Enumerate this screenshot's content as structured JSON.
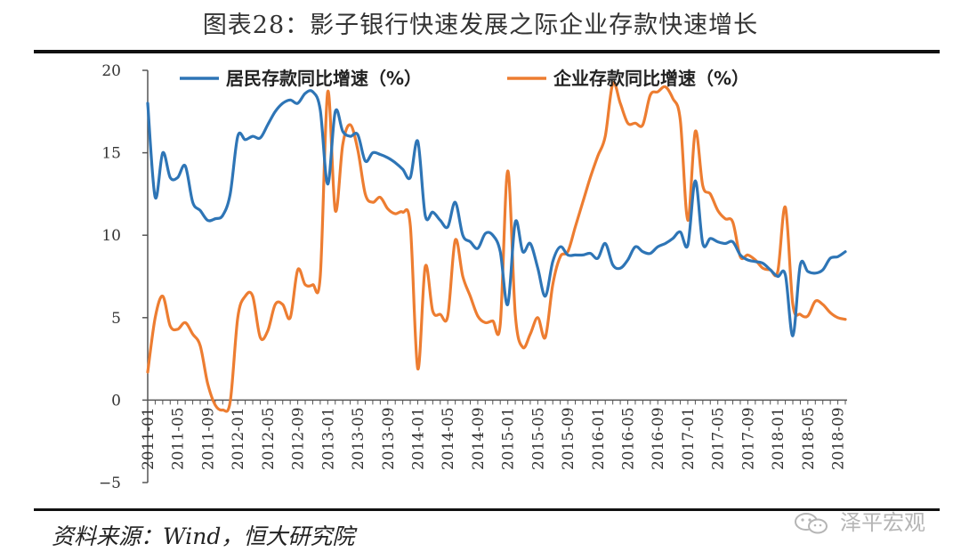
{
  "title": "图表28：影子银行快速发展之际企业存款快速增长",
  "source": "资料来源：Wind，恒大研究院",
  "watermark": "泽平宏观",
  "colors": {
    "series_1": "#2E75B6",
    "series_2": "#ED7D31",
    "axis": "#555555"
  },
  "chart_data": {
    "type": "line",
    "title": "图表28：影子银行快速发展之际企业存款快速增长",
    "xlabel": "",
    "ylabel": "",
    "ylim": [
      -5,
      20
    ],
    "yticks": [
      -5,
      0,
      5,
      10,
      15,
      20
    ],
    "xlim": [
      0,
      93
    ],
    "xtick_labels": [
      "2011-01",
      "2011-05",
      "2011-09",
      "2012-01",
      "2012-05",
      "2012-09",
      "2013-01",
      "2013-05",
      "2013-09",
      "2014-01",
      "2014-05",
      "2014-09",
      "2015-01",
      "2015-05",
      "2015-09",
      "2016-01",
      "2016-05",
      "2016-09",
      "2017-01",
      "2017-05",
      "2017-09",
      "2018-01",
      "2018-05",
      "2018-09"
    ],
    "legend_position": "top",
    "series": [
      {
        "name": "居民存款同比增速（%）",
        "color": "#2E75B6",
        "values": [
          18.0,
          12.3,
          15.0,
          13.5,
          13.5,
          14.2,
          12.0,
          11.5,
          10.9,
          11.0,
          11.2,
          12.5,
          16.0,
          15.8,
          16.0,
          15.9,
          16.7,
          17.5,
          18.0,
          18.2,
          18.0,
          18.6,
          18.7,
          17.6,
          13.1,
          17.5,
          16.3,
          16.0,
          16.1,
          14.5,
          15.0,
          14.9,
          14.7,
          14.4,
          14.0,
          13.5,
          15.7,
          11.2,
          11.4,
          10.9,
          10.5,
          12.0,
          10.0,
          9.6,
          9.2,
          10.1,
          10.0,
          9.0,
          5.8,
          10.8,
          9.0,
          9.5,
          8.0,
          6.3,
          8.4,
          9.3,
          8.8,
          8.8,
          8.8,
          8.9,
          8.6,
          9.5,
          8.2,
          8.0,
          8.5,
          9.3,
          9.0,
          8.9,
          9.3,
          9.5,
          9.8,
          10.2,
          9.4,
          13.3,
          9.5,
          9.8,
          9.6,
          9.5,
          9.6,
          8.8,
          8.5,
          8.4,
          8.3,
          7.9,
          7.5,
          7.6,
          3.9,
          8.2,
          7.8,
          7.7,
          7.9,
          8.6,
          8.7,
          9.0
        ]
      },
      {
        "name": "企业存款同比增速（%）",
        "color": "#ED7D31",
        "values": [
          1.7,
          5.0,
          6.3,
          4.5,
          4.3,
          4.7,
          4.0,
          3.3,
          1.0,
          -0.3,
          -0.6,
          -0.1,
          5.0,
          6.3,
          6.3,
          3.8,
          4.2,
          5.8,
          5.8,
          5.0,
          7.9,
          7.0,
          7.0,
          7.5,
          18.7,
          11.5,
          15.5,
          16.7,
          15.2,
          12.5,
          12.0,
          12.3,
          11.6,
          11.3,
          11.4,
          10.6,
          1.9,
          8.1,
          5.4,
          5.2,
          5.1,
          9.7,
          7.5,
          6.3,
          5.1,
          4.7,
          4.8,
          4.6,
          13.9,
          5.2,
          3.2,
          4.0,
          5.0,
          3.8,
          7.0,
          8.7,
          9.0,
          10.5,
          12.0,
          13.5,
          14.8,
          16.0,
          19.2,
          18.0,
          16.8,
          16.8,
          16.7,
          18.5,
          18.7,
          19.0,
          18.3,
          17.0,
          10.9,
          16.3,
          13.0,
          12.5,
          11.5,
          11.0,
          10.8,
          8.7,
          8.8,
          8.5,
          8.0,
          7.9,
          7.8,
          11.7,
          5.8,
          5.2,
          5.1,
          6.0,
          5.8,
          5.3,
          5.0,
          4.9
        ]
      }
    ]
  }
}
